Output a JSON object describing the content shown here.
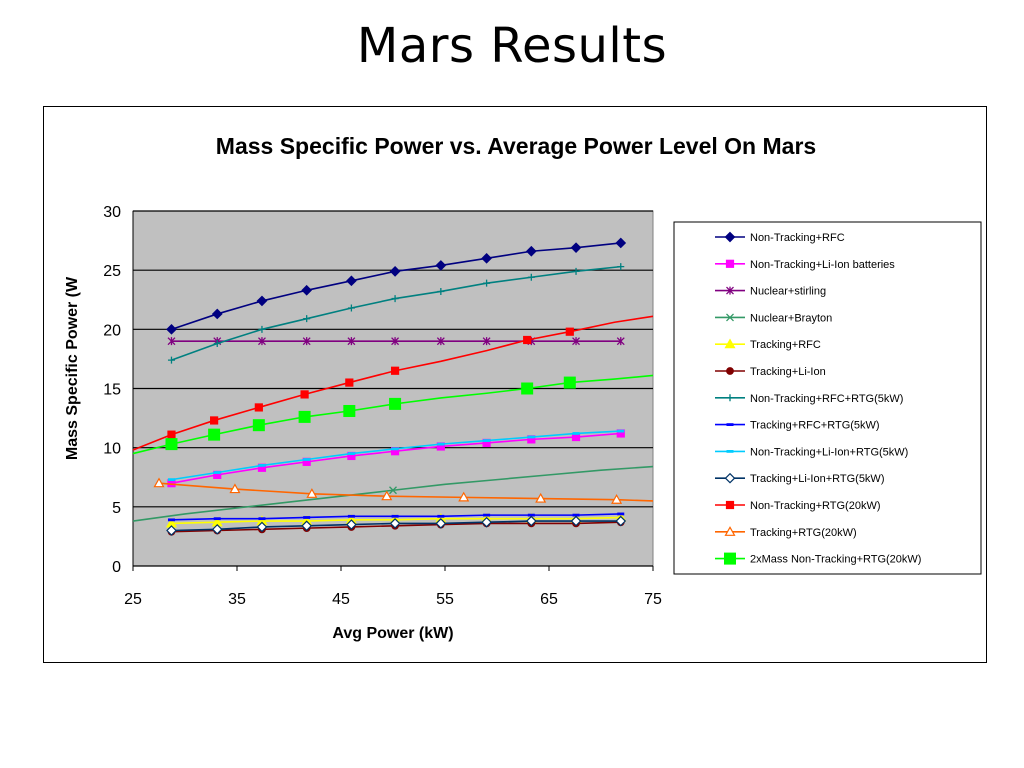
{
  "slide": {
    "title": "Mars Results"
  },
  "chart_data": {
    "type": "line",
    "title": "Mass Specific Power vs. Average Power Level On Mars",
    "xlabel": "Avg Power (kW)",
    "ylabel": "Mass Specific Power (W",
    "xlim": [
      25,
      75
    ],
    "ylim": [
      0,
      30
    ],
    "xticks": [
      25,
      35,
      45,
      55,
      65,
      75
    ],
    "yticks": [
      0,
      5,
      10,
      15,
      20,
      25,
      30
    ],
    "grid": "horizontal major gridlines",
    "plot_background": "#C0C0C0",
    "legend_position": "right",
    "series": [
      {
        "name": "Non-Tracking+RFC",
        "color": "#000080",
        "marker": "diamond",
        "marker_fill": "#000080",
        "x": [
          28.7,
          33.1,
          37.4,
          41.7,
          46,
          50.2,
          54.6,
          59,
          63.3,
          67.6,
          71.9
        ],
        "y": [
          20,
          21.3,
          22.4,
          23.3,
          24.1,
          24.9,
          25.4,
          26,
          26.6,
          26.9,
          27.3
        ]
      },
      {
        "name": "Non-Tracking+Li-Ion batteries",
        "color": "#FF00FF",
        "marker": "square",
        "marker_fill": "#FF00FF",
        "x": [
          28.7,
          33.1,
          37.4,
          41.7,
          46,
          50.2,
          54.6,
          59,
          63.3,
          67.6,
          71.9
        ],
        "y": [
          7,
          7.7,
          8.3,
          8.8,
          9.3,
          9.7,
          10.1,
          10.4,
          10.7,
          10.9,
          11.2
        ]
      },
      {
        "name": "Nuclear+stirling",
        "color": "#800080",
        "marker": "star",
        "marker_fill": "#800080",
        "x": [
          28.7,
          33.1,
          37.4,
          41.7,
          46,
          50.2,
          54.6,
          59,
          63.3,
          67.6,
          71.9
        ],
        "y": [
          19,
          19,
          19,
          19,
          19,
          19,
          19,
          19,
          19,
          19,
          19
        ]
      },
      {
        "name": "Nuclear+Brayton",
        "color": "#339966",
        "marker": "x",
        "marker_fill": "#339966",
        "x": [
          25,
          30,
          35,
          40,
          45,
          50,
          55,
          60,
          65,
          70,
          75
        ],
        "y": [
          3.8,
          4.4,
          4.9,
          5.4,
          5.9,
          6.4,
          6.9,
          7.3,
          7.7,
          8.1,
          8.4
        ],
        "marker_x": [
          50
        ]
      },
      {
        "name": "Tracking+RFC",
        "color": "#FFFF00",
        "marker": "triangle",
        "marker_fill": "#FFFF00",
        "x": [
          28.7,
          33.1,
          37.4,
          41.7,
          46,
          50.2,
          54.6,
          59,
          63.3,
          67.6,
          71.9
        ],
        "y": [
          3.6,
          3.7,
          3.8,
          3.8,
          3.9,
          3.9,
          4,
          4,
          4,
          4,
          4.1
        ]
      },
      {
        "name": "Tracking+Li-Ion",
        "color": "#800000",
        "marker": "circle",
        "marker_fill": "#800000",
        "x": [
          28.7,
          33.1,
          37.4,
          41.7,
          46,
          50.2,
          54.6,
          59,
          63.3,
          67.6,
          71.9
        ],
        "y": [
          2.9,
          3,
          3.1,
          3.2,
          3.3,
          3.4,
          3.5,
          3.6,
          3.6,
          3.6,
          3.7
        ]
      },
      {
        "name": "Non-Tracking+RFC+RTG(5kW)",
        "color": "#008080",
        "marker": "plus",
        "marker_fill": "#008080",
        "x": [
          28.7,
          33.1,
          37.4,
          41.7,
          46,
          50.2,
          54.6,
          59,
          63.3,
          67.6,
          71.9
        ],
        "y": [
          17.4,
          18.8,
          20,
          20.9,
          21.8,
          22.6,
          23.2,
          23.9,
          24.4,
          24.9,
          25.3
        ]
      },
      {
        "name": "Tracking+RFC+RTG(5kW)",
        "color": "#0000FF",
        "marker": "dash",
        "marker_fill": "#0000FF",
        "x": [
          28.7,
          33.1,
          37.4,
          41.7,
          46,
          50.2,
          54.6,
          59,
          63.3,
          67.6,
          71.9
        ],
        "y": [
          3.9,
          4,
          4,
          4.1,
          4.2,
          4.2,
          4.2,
          4.3,
          4.3,
          4.3,
          4.4
        ]
      },
      {
        "name": "Non-Tracking+Li-Ion+RTG(5kW)",
        "color": "#00CCFF",
        "marker": "dash",
        "marker_fill": "#00CCFF",
        "x": [
          28.7,
          33.1,
          37.4,
          41.7,
          46,
          50.2,
          54.6,
          59,
          63.3,
          67.6,
          71.9
        ],
        "y": [
          7.3,
          7.9,
          8.5,
          9,
          9.5,
          9.9,
          10.3,
          10.6,
          10.9,
          11.2,
          11.4
        ]
      },
      {
        "name": "Tracking+Li-Ion+RTG(5kW)",
        "color": "#003366",
        "marker": "diamond",
        "marker_fill": "#FFFFFF",
        "x": [
          28.7,
          33.1,
          37.4,
          41.7,
          46,
          50.2,
          54.6,
          59,
          63.3,
          67.6,
          71.9
        ],
        "y": [
          3,
          3.1,
          3.3,
          3.4,
          3.5,
          3.6,
          3.6,
          3.7,
          3.8,
          3.8,
          3.8
        ]
      },
      {
        "name": "Non-Tracking+RTG(20kW)",
        "color": "#FF0000",
        "marker": "square",
        "marker_fill": "#FF0000",
        "x": [
          25,
          28.7,
          32.8,
          37.1,
          41.5,
          45.8,
          50.2,
          54.6,
          59,
          62.9,
          67,
          71.3,
          75
        ],
        "y": [
          9.8,
          11.1,
          12.3,
          13.4,
          14.5,
          15.5,
          16.5,
          17.3,
          18.2,
          19.1,
          19.8,
          20.6,
          21.1
        ],
        "marker_x": [
          28.7,
          32.8,
          37.1,
          41.5,
          45.8,
          50.2,
          62.9,
          67
        ]
      },
      {
        "name": "Tracking+RTG(20kW)",
        "color": "#FF6600",
        "marker": "triangle",
        "marker_fill": "#FFFFFF",
        "x": [
          27.5,
          34.8,
          42.2,
          49.4,
          56.8,
          64.2,
          71.5,
          75
        ],
        "y": [
          7,
          6.5,
          6.1,
          5.9,
          5.8,
          5.7,
          5.6,
          5.5
        ],
        "marker_x": [
          27.5,
          34.8,
          42.2,
          49.4,
          56.8,
          64.2,
          71.5
        ]
      },
      {
        "name": "2xMass Non-Tracking+RTG(20kW)",
        "color": "#00FF00",
        "marker": "square-large",
        "marker_fill": "#00FF00",
        "x": [
          25,
          28.7,
          32.8,
          37.1,
          41.5,
          45.8,
          50.2,
          54.6,
          59,
          62.9,
          67,
          71.3,
          75
        ],
        "y": [
          9.5,
          10.3,
          11.1,
          11.9,
          12.6,
          13.1,
          13.7,
          14.2,
          14.6,
          15,
          15.5,
          15.8,
          16.1
        ],
        "marker_x": [
          28.7,
          32.8,
          37.1,
          41.5,
          45.8,
          50.2,
          62.9,
          67
        ]
      }
    ]
  }
}
